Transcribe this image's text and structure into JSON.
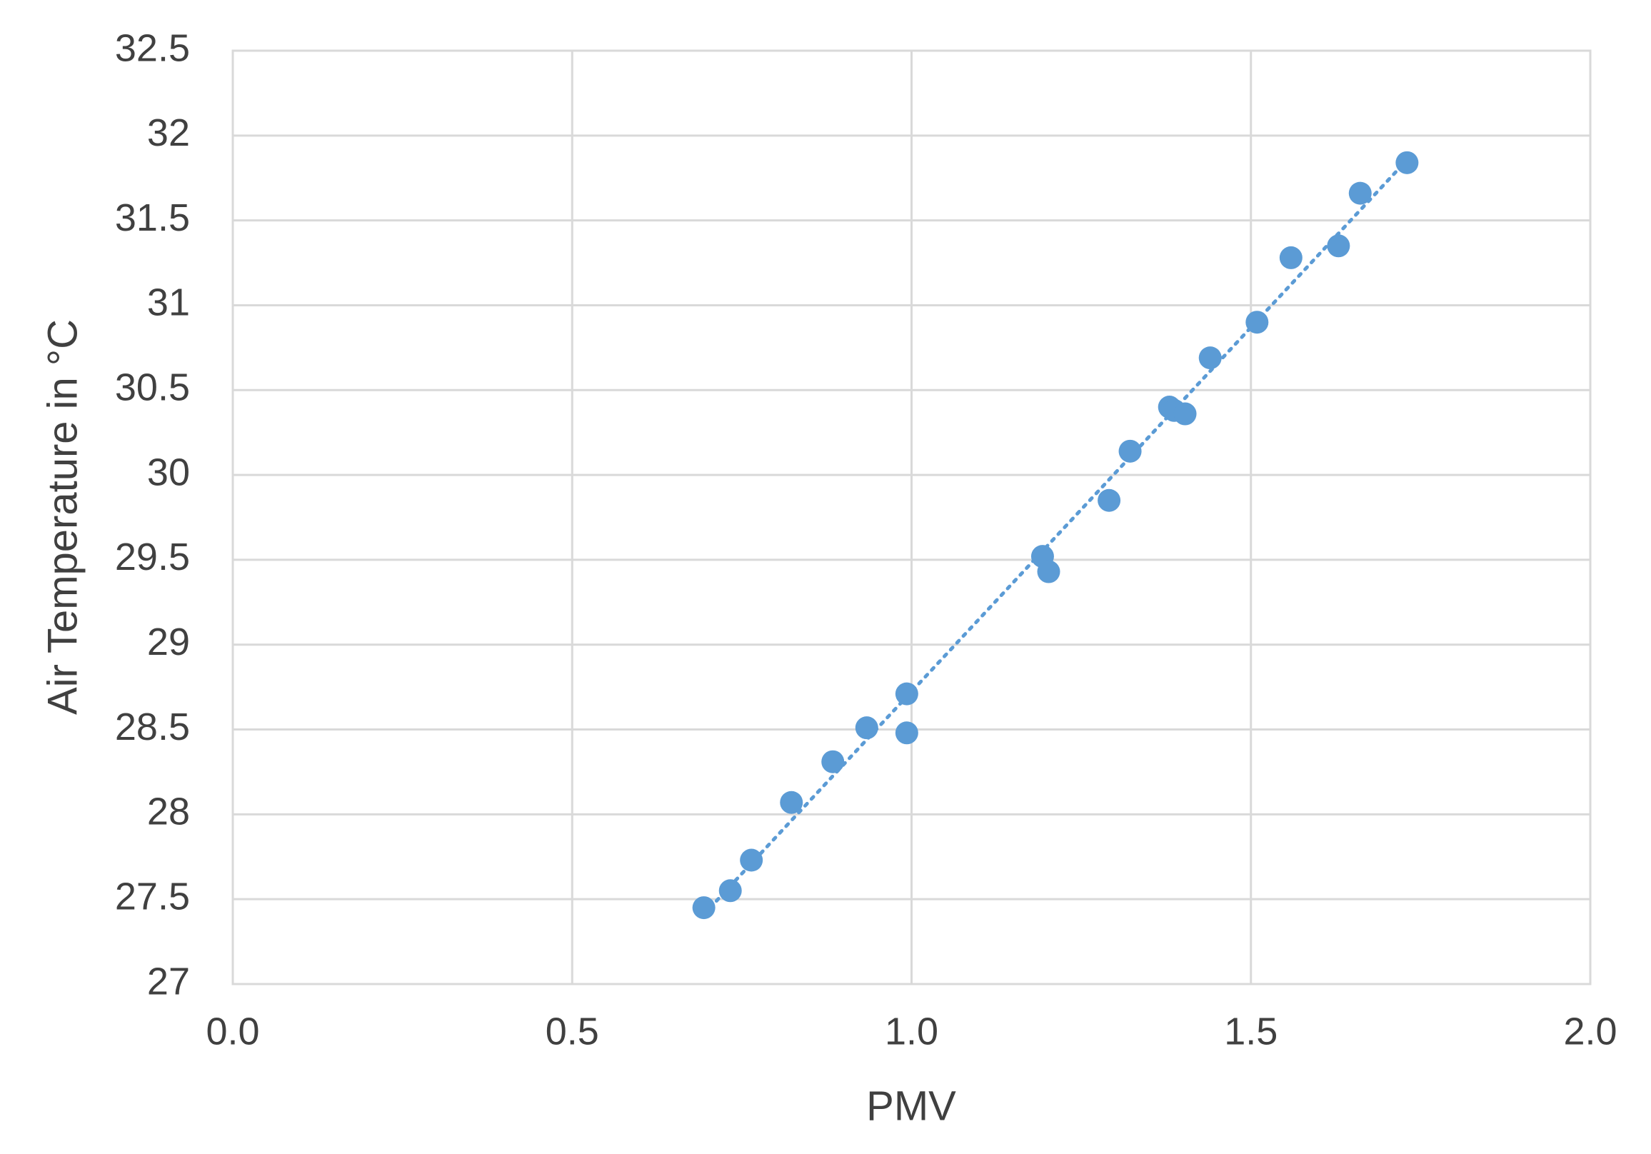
{
  "chart_data": {
    "type": "scatter",
    "x_label": "PMV",
    "y_label": "Air Temperature in °C",
    "color": "#5b9bd5",
    "grid": true,
    "trendline": "linear",
    "x": [
      0.694,
      0.733,
      0.764,
      0.823,
      0.884,
      0.934,
      0.993,
      0.993,
      1.193,
      1.202,
      1.291,
      1.322,
      1.38,
      1.387,
      1.403,
      1.44,
      1.509,
      1.559,
      1.629,
      1.661,
      1.73
    ],
    "values": [
      27.45,
      27.55,
      27.73,
      28.07,
      28.31,
      28.51,
      28.71,
      28.48,
      29.52,
      29.43,
      29.85,
      30.14,
      30.4,
      30.38,
      30.36,
      30.69,
      30.9,
      31.28,
      31.35,
      31.66,
      31.84
    ],
    "xlim": [
      0,
      2
    ],
    "xticks": [
      {
        "value": 0,
        "label": "0.0"
      },
      0.5,
      {
        "value": 1,
        "label": "1.0"
      },
      1.5,
      {
        "value": 2,
        "label": "2.0"
      }
    ],
    "ylim": [
      27,
      32.5
    ],
    "yticks": [
      27,
      27.5,
      28,
      28.5,
      29,
      29.5,
      30,
      30.5,
      31,
      31.5,
      32,
      32.5
    ]
  }
}
